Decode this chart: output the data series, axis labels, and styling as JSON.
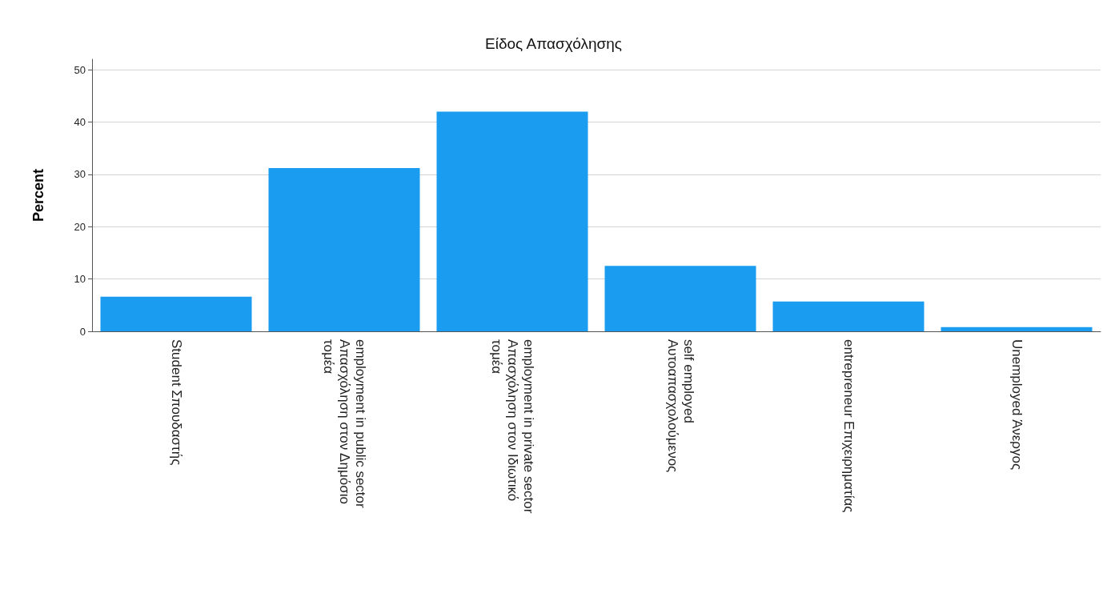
{
  "chart_data": {
    "type": "bar",
    "title": "Είδος Απασχόλησης",
    "ylabel": "Percent",
    "categories": [
      "Student Σπουδαστής",
      "employment in public sector\nΑπασχόληση στον Δημόσιο\nτομέα",
      "employment in private sector\nΑπασχόληση στον Ιδιωτικό\nτομέα",
      "self employed\nΑυτοαπασχολούμενος",
      "entrepreneur Επιχειρηματίας",
      "Unemployed Άνεργος"
    ],
    "values": [
      6.6,
      31.2,
      42.0,
      12.5,
      5.7,
      0.8
    ],
    "color": "#1a9cf0",
    "ylim": [
      0,
      52
    ],
    "yticks": [
      0,
      10,
      20,
      30,
      40,
      50
    ],
    "grid": "y"
  }
}
